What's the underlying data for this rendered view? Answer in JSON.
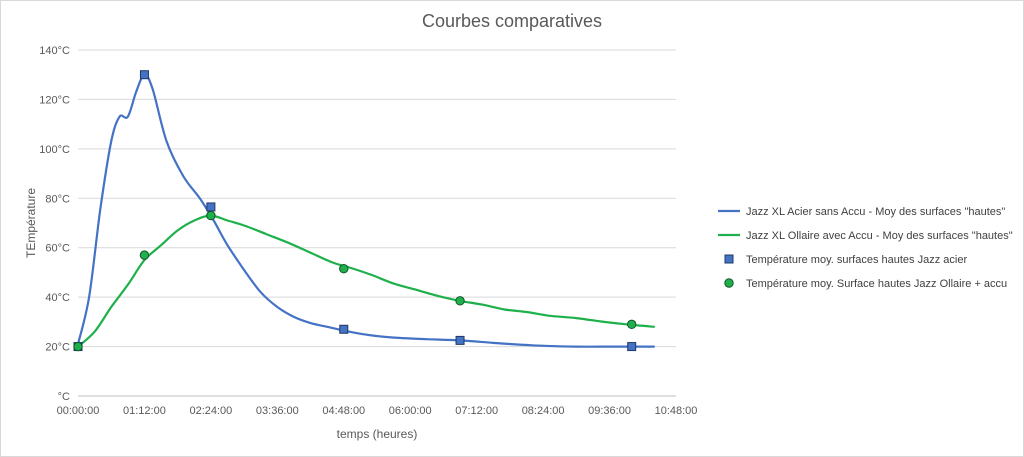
{
  "chart_data": {
    "type": "line",
    "title": "Courbes comparatives",
    "xlabel": "temps (heures)",
    "ylabel": "TEmpérature",
    "x_ticks": [
      "00:00:00",
      "01:12:00",
      "02:24:00",
      "03:36:00",
      "04:48:00",
      "06:00:00",
      "07:12:00",
      "08:24:00",
      "09:36:00",
      "10:48:00"
    ],
    "x_range_hours": [
      0,
      10.8
    ],
    "y_ticks": [
      "°C",
      "20°C",
      "40°C",
      "60°C",
      "80°C",
      "100°C",
      "120°C",
      "140°C"
    ],
    "ylim": [
      0,
      140
    ],
    "grid": "horizontal",
    "legend_position": "right",
    "series": [
      {
        "name": "Jazz XL Acier sans Accu - Moy des surfaces \"hautes\"",
        "kind": "line",
        "color": "#4472c4",
        "x_hours": [
          0,
          0.2,
          0.4,
          0.6,
          0.75,
          0.9,
          1.05,
          1.2,
          1.35,
          1.6,
          1.9,
          2.2,
          2.45,
          2.7,
          3.0,
          3.3,
          3.6,
          3.9,
          4.2,
          4.5,
          4.9,
          5.3,
          5.8,
          6.3,
          6.9,
          7.5,
          8.2,
          9.0,
          9.7,
          10.4
        ],
        "y": [
          21,
          40,
          75,
          103,
          113,
          113,
          123,
          130,
          124,
          103,
          89,
          80,
          71,
          61,
          51,
          42,
          36,
          32,
          29.5,
          28,
          26,
          24.5,
          23.5,
          23,
          22.5,
          21.5,
          20.5,
          20,
          20,
          20
        ]
      },
      {
        "name": "Jazz XL Ollaire avec Accu - Moy des surfaces \"hautes\"",
        "kind": "line",
        "color": "#1eb04a",
        "x_hours": [
          0,
          0.3,
          0.6,
          0.9,
          1.2,
          1.5,
          1.8,
          2.1,
          2.4,
          2.7,
          3.0,
          3.4,
          3.8,
          4.2,
          4.6,
          4.9,
          5.3,
          5.7,
          6.1,
          6.5,
          6.9,
          7.3,
          7.7,
          8.1,
          8.5,
          9.0,
          9.5,
          9.9,
          10.4
        ],
        "y": [
          20,
          26,
          36,
          45,
          55,
          61,
          67,
          71,
          73,
          71,
          69,
          65.5,
          62,
          58,
          54,
          52,
          49,
          45.5,
          43,
          40.5,
          38.5,
          37,
          35,
          34,
          32.5,
          31.5,
          30,
          29,
          28
        ]
      },
      {
        "name": "Température moy. surfaces hautes Jazz acier",
        "kind": "marker",
        "marker": "square",
        "color": "#4472c4",
        "x_hours": [
          0,
          1.2,
          2.4,
          4.8,
          6.9,
          10.0
        ],
        "y": [
          20,
          130,
          76.5,
          27,
          22.5,
          20
        ]
      },
      {
        "name": "Température moy. Surface hautes Jazz Ollaire + accu",
        "kind": "marker",
        "marker": "circle",
        "color": "#1eb04a",
        "x_hours": [
          0,
          1.2,
          2.4,
          4.8,
          6.9,
          10.0
        ],
        "y": [
          20,
          57,
          73,
          51.5,
          38.5,
          29
        ]
      }
    ]
  }
}
